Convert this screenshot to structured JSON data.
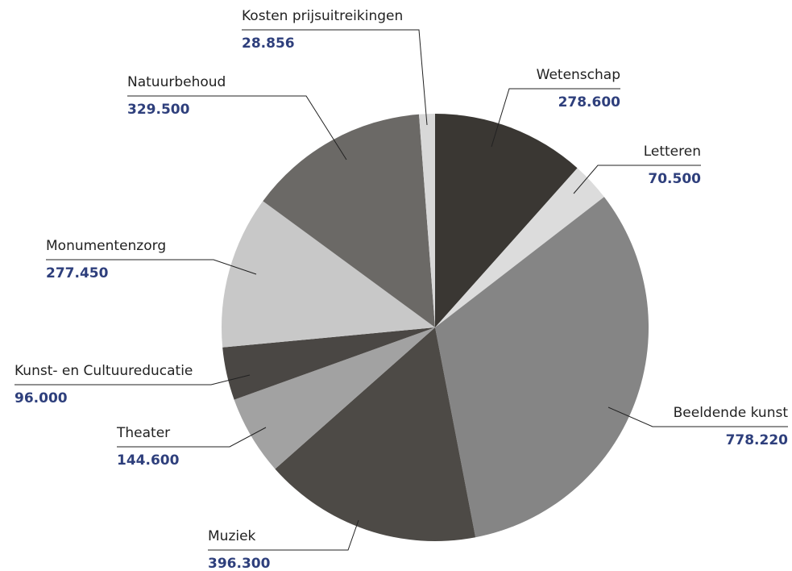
{
  "chart_data": {
    "type": "pie",
    "categories": [
      "Wetenschap",
      "Letteren",
      "Beeldende kunst",
      "Muziek",
      "Theater",
      "Kunst- en Cultuureducatie",
      "Monumentenzorg",
      "Natuurbehoud",
      "Kosten prijsuitreikingen"
    ],
    "values": [
      278600,
      70500,
      778220,
      396300,
      144600,
      96000,
      277450,
      329500,
      28856
    ],
    "value_labels": [
      "278.600",
      "70.500",
      "778.220",
      "396.300",
      "144.600",
      "96.000",
      "277.450",
      "329.500",
      "28.856"
    ],
    "colors": [
      "#3a3733",
      "#dcdcdc",
      "#858585",
      "#4d4a46",
      "#a2a2a2",
      "#4a4744",
      "#c8c8c8",
      "#6b6966",
      "#d8d8d8"
    ]
  }
}
